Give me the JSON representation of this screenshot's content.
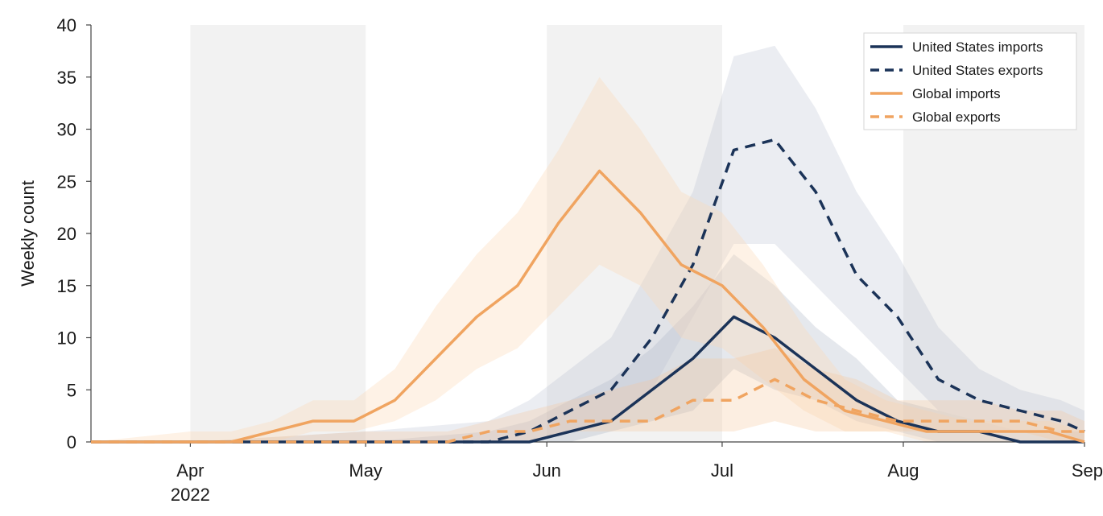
{
  "chart_data": {
    "type": "line",
    "title": "",
    "xlabel": "",
    "ylabel": "Weekly count",
    "ylim": [
      0,
      40
    ],
    "y_ticks": [
      0,
      5,
      10,
      15,
      20,
      25,
      30,
      35,
      40
    ],
    "x_range": [
      "2022-03-15",
      "2022-09-01"
    ],
    "x_ticks": [
      {
        "date": "2022-04-01",
        "label": "Apr",
        "sublabel": "2022"
      },
      {
        "date": "2022-05-01",
        "label": "May",
        "sublabel": ""
      },
      {
        "date": "2022-06-01",
        "label": "Jun",
        "sublabel": ""
      },
      {
        "date": "2022-07-01",
        "label": "Jul",
        "sublabel": ""
      },
      {
        "date": "2022-08-01",
        "label": "Aug",
        "sublabel": ""
      },
      {
        "date": "2022-09-01",
        "label": "Sep",
        "sublabel": ""
      }
    ],
    "shaded_periods": [
      [
        "2022-04-01",
        "2022-05-01"
      ],
      [
        "2022-06-01",
        "2022-07-01"
      ],
      [
        "2022-08-01",
        "2022-09-01"
      ]
    ],
    "grid": false,
    "legend_position": "top-right",
    "series": [
      {
        "name": "United States imports",
        "color": "#1b3358",
        "dash": "solid",
        "x": [
          "2022-03-15",
          "2022-04-01",
          "2022-05-01",
          "2022-05-22",
          "2022-05-29",
          "2022-06-05",
          "2022-06-12",
          "2022-06-19",
          "2022-06-26",
          "2022-07-03",
          "2022-07-10",
          "2022-07-17",
          "2022-07-24",
          "2022-07-31",
          "2022-08-07",
          "2022-08-14",
          "2022-08-21",
          "2022-08-28",
          "2022-09-01"
        ],
        "y": [
          0,
          0,
          0,
          0,
          0,
          1,
          2,
          5,
          8,
          12,
          10,
          7,
          4,
          2,
          1,
          1,
          0,
          0,
          0
        ],
        "band_lower": [
          0,
          0,
          0,
          0,
          0,
          0,
          1,
          2,
          3,
          7,
          5,
          4,
          2,
          1,
          0,
          0,
          0,
          0,
          0
        ],
        "band_upper": [
          0,
          0,
          0,
          1,
          2,
          4,
          6,
          9,
          13,
          18,
          15,
          11,
          8,
          4,
          3,
          2,
          1,
          1,
          1
        ]
      },
      {
        "name": "United States exports",
        "color": "#1b3358",
        "dash": "dashed",
        "x": [
          "2022-03-15",
          "2022-04-01",
          "2022-05-01",
          "2022-05-22",
          "2022-05-29",
          "2022-06-05",
          "2022-06-12",
          "2022-06-19",
          "2022-06-26",
          "2022-07-03",
          "2022-07-10",
          "2022-07-17",
          "2022-07-24",
          "2022-07-31",
          "2022-08-07",
          "2022-08-14",
          "2022-08-21",
          "2022-08-28",
          "2022-09-01"
        ],
        "y": [
          0,
          0,
          0,
          0,
          1,
          3,
          5,
          10,
          17,
          28,
          29,
          24,
          16,
          12,
          6,
          4,
          3,
          2,
          1
        ],
        "band_lower": [
          0,
          0,
          0,
          0,
          0,
          1,
          2,
          5,
          12,
          19,
          19,
          15,
          11,
          7,
          3,
          2,
          1,
          1,
          0
        ],
        "band_upper": [
          0,
          0,
          1,
          2,
          4,
          7,
          10,
          17,
          24,
          37,
          38,
          32,
          24,
          18,
          11,
          7,
          5,
          4,
          3
        ]
      },
      {
        "name": "Global imports",
        "color": "#f0a460",
        "dash": "solid",
        "x": [
          "2022-03-15",
          "2022-04-01",
          "2022-04-08",
          "2022-04-15",
          "2022-04-22",
          "2022-04-29",
          "2022-05-06",
          "2022-05-13",
          "2022-05-20",
          "2022-05-27",
          "2022-06-03",
          "2022-06-10",
          "2022-06-17",
          "2022-06-24",
          "2022-07-01",
          "2022-07-08",
          "2022-07-15",
          "2022-07-22",
          "2022-07-29",
          "2022-08-05",
          "2022-08-12",
          "2022-08-19",
          "2022-08-26",
          "2022-09-01"
        ],
        "y": [
          0,
          0,
          0,
          1,
          2,
          2,
          4,
          8,
          12,
          15,
          21,
          26,
          22,
          17,
          15,
          11,
          6,
          3,
          2,
          1,
          1,
          1,
          1,
          0
        ],
        "band_lower": [
          0,
          0,
          0,
          0,
          1,
          1,
          2,
          4,
          7,
          9,
          13,
          17,
          15,
          10,
          9,
          6,
          3,
          1,
          1,
          0,
          0,
          0,
          0,
          0
        ],
        "band_upper": [
          0,
          1,
          1,
          2,
          4,
          4,
          7,
          13,
          18,
          22,
          28,
          35,
          30,
          24,
          22,
          17,
          11,
          6,
          4,
          3,
          2,
          2,
          2,
          1
        ]
      },
      {
        "name": "Global exports",
        "color": "#f0a460",
        "dash": "dashed",
        "x": [
          "2022-03-15",
          "2022-04-01",
          "2022-05-01",
          "2022-05-15",
          "2022-05-22",
          "2022-05-29",
          "2022-06-05",
          "2022-06-12",
          "2022-06-19",
          "2022-06-26",
          "2022-07-03",
          "2022-07-10",
          "2022-07-17",
          "2022-07-24",
          "2022-07-31",
          "2022-08-07",
          "2022-08-14",
          "2022-08-21",
          "2022-08-28",
          "2022-09-01"
        ],
        "y": [
          0,
          0,
          0,
          0,
          1,
          1,
          2,
          2,
          2,
          4,
          4,
          6,
          4,
          3,
          2,
          2,
          2,
          2,
          1,
          1
        ],
        "band_lower": [
          0,
          0,
          0,
          0,
          0,
          0,
          1,
          1,
          1,
          1,
          1,
          2,
          1,
          1,
          1,
          1,
          1,
          1,
          0,
          0
        ],
        "band_upper": [
          0,
          0,
          1,
          1,
          2,
          3,
          4,
          5,
          6,
          8,
          8,
          9,
          7,
          6,
          4,
          4,
          4,
          3,
          3,
          2
        ]
      }
    ]
  }
}
